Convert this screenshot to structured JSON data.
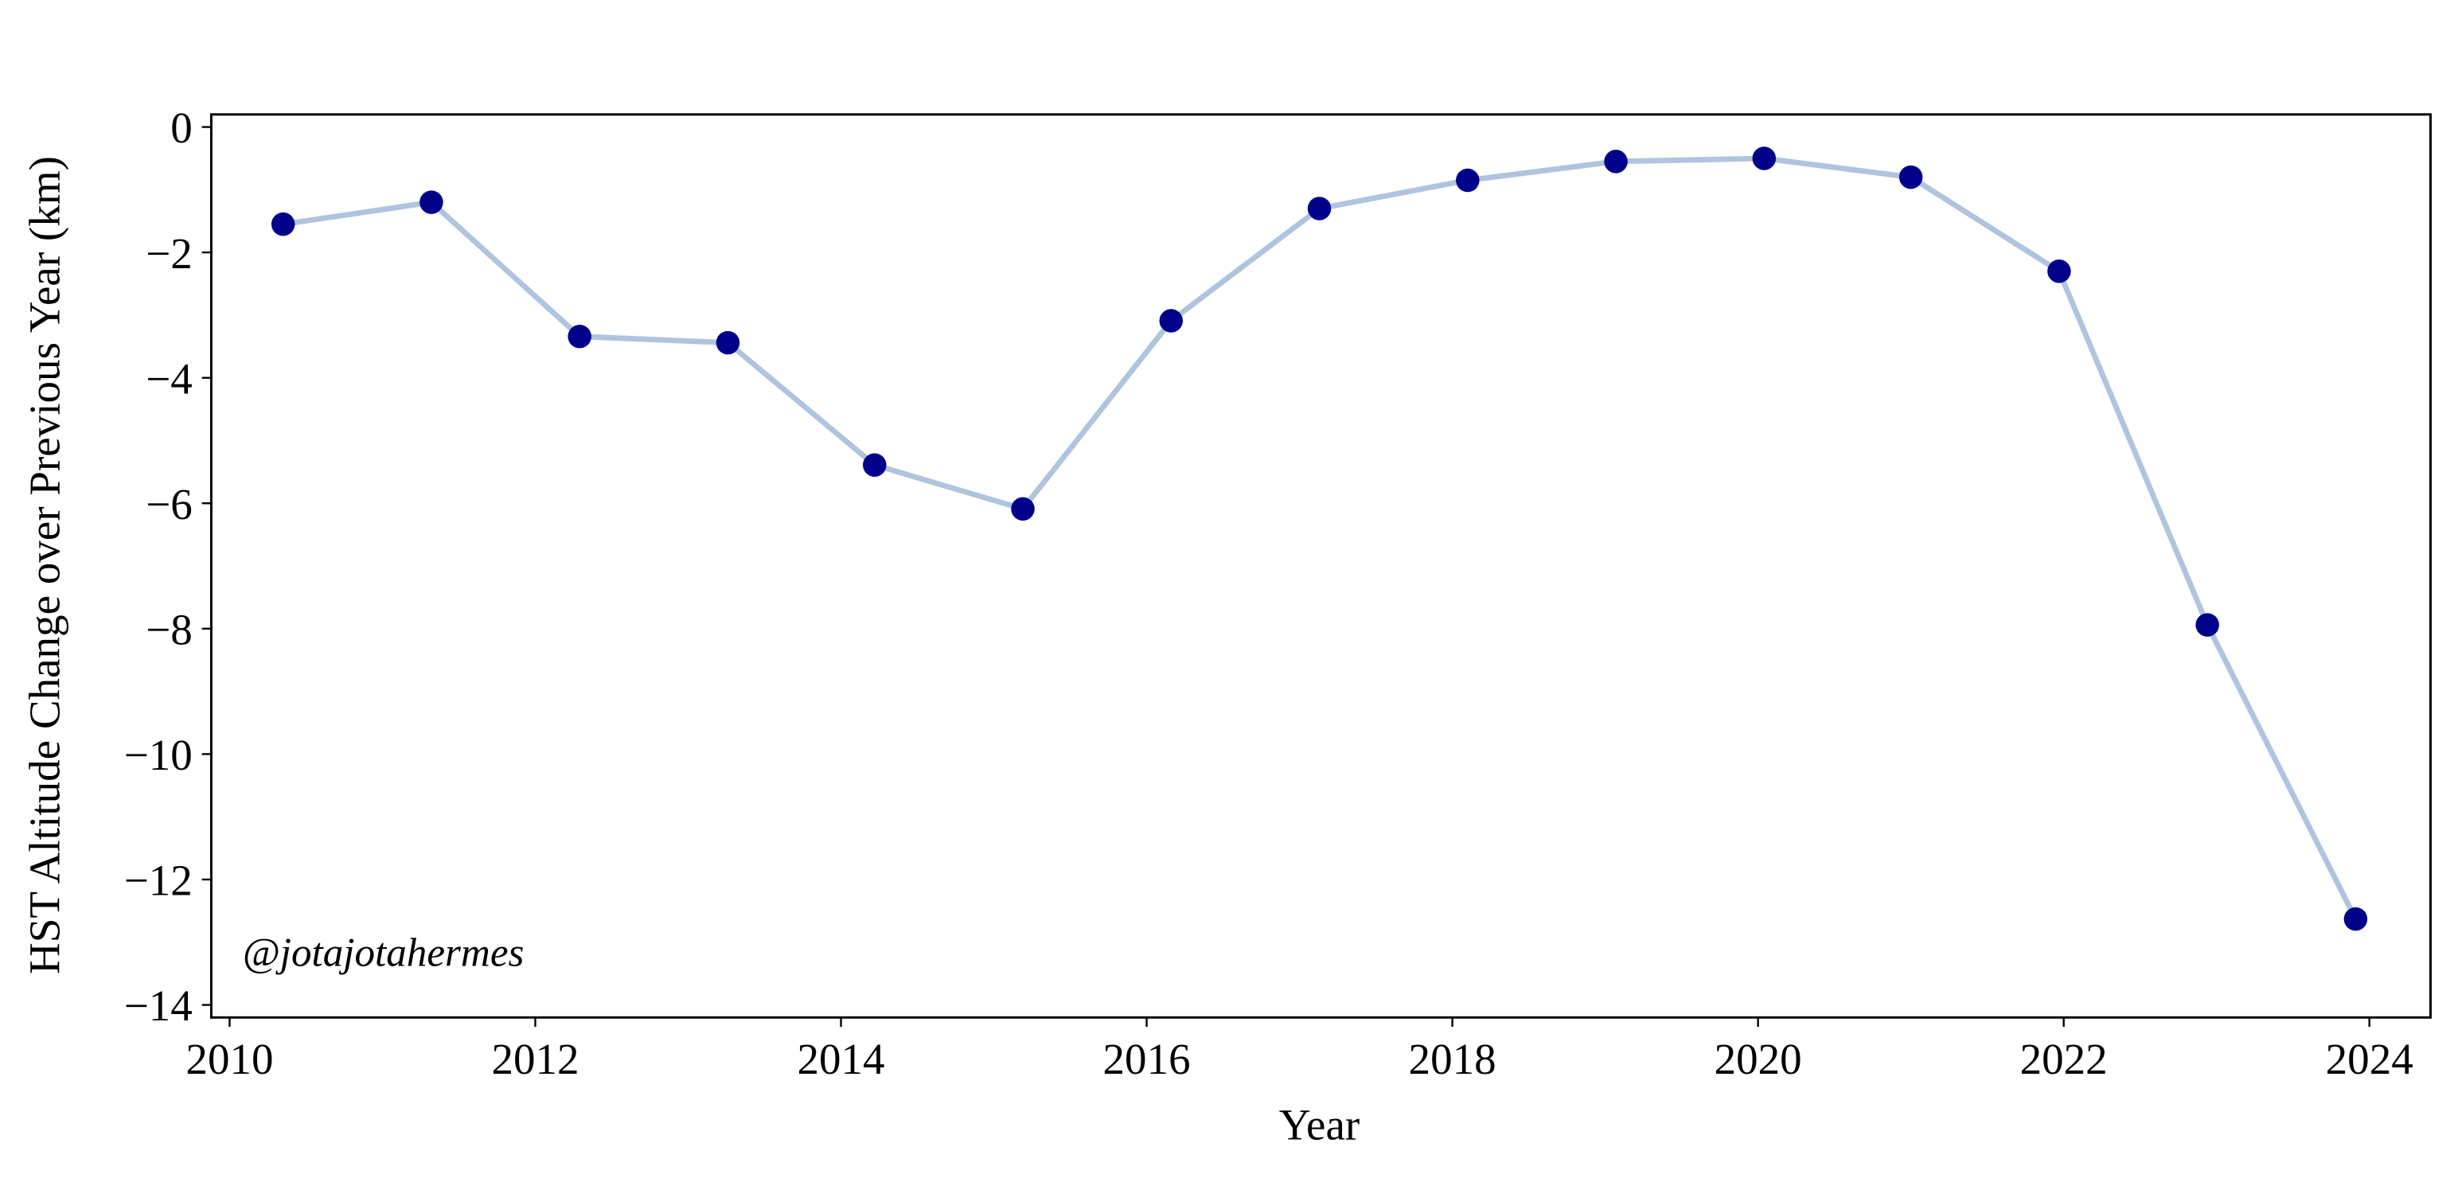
{
  "chart_data": {
    "type": "line",
    "x_label": "Year",
    "y_label": "HST Altitude Change over Previous Year (km)",
    "annotation": "@jotajotahermes",
    "x": [
      2010.35,
      2011.32,
      2012.29,
      2013.26,
      2014.22,
      2015.19,
      2016.16,
      2017.13,
      2018.1,
      2019.07,
      2020.04,
      2021.0,
      2021.97,
      2022.94,
      2023.91
    ],
    "series": [
      {
        "color": "#b0c4de",
        "marker_color": "#00008b",
        "values": [
          -1.55,
          -1.2,
          -3.34,
          -3.44,
          -5.39,
          -6.09,
          -3.09,
          -1.3,
          -0.85,
          -0.55,
          -0.5,
          -0.8,
          -2.3,
          -7.94,
          -12.63
        ]
      }
    ],
    "xlim": [
      2009.88,
      2024.4
    ],
    "ylim": [
      -14.2,
      0.2
    ],
    "xticks": [
      2010,
      2012,
      2014,
      2016,
      2018,
      2020,
      2022,
      2024
    ],
    "yticks": [
      0,
      {
        "value": -2,
        "label": "−2"
      },
      {
        "value": -4,
        "label": "−4"
      },
      {
        "value": -6,
        "label": "−6"
      },
      {
        "value": -8,
        "label": "−8"
      },
      {
        "value": -10,
        "label": "−10"
      },
      {
        "value": -12,
        "label": "−12"
      },
      {
        "value": -14,
        "label": "−14"
      }
    ],
    "grid": false
  }
}
